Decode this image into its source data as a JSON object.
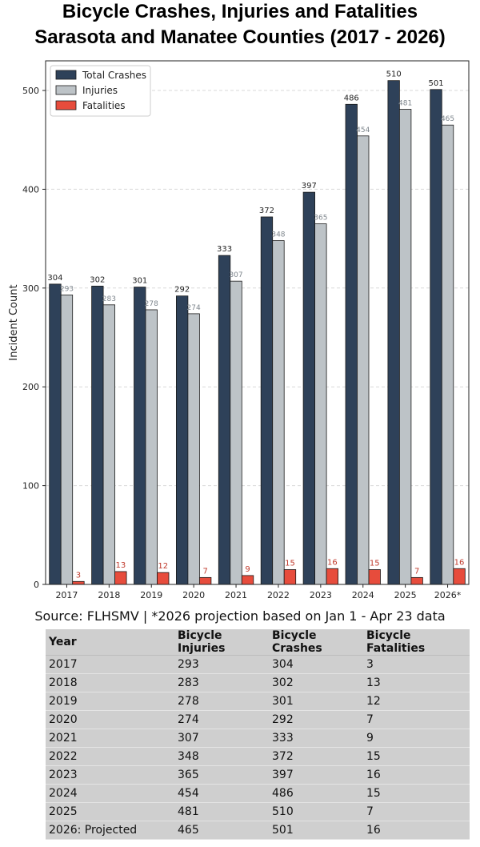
{
  "title_line1": "Bicycle Crashes, Injuries and Fatalities",
  "title_line2": "Sarasota and Manatee Counties (2017 - 2026)",
  "source_note": "Source: FLHSMV | *2026 projection based on Jan 1 - Apr 23 data",
  "colors": {
    "total": "#2e4159",
    "injuries": "#bdc3c7",
    "fatalities": "#e74c3c",
    "fatal_label": "#c0392b"
  },
  "chart_data": {
    "type": "bar",
    "title": "Bicycle Crashes, Injuries and Fatalities Sarasota and Manatee Counties (2017 - 2026)",
    "xlabel": "",
    "ylabel": "Incident Count",
    "ylim": [
      0,
      530
    ],
    "yticks": [
      0,
      100,
      200,
      300,
      400,
      500
    ],
    "grid": true,
    "legend_position": "top-left",
    "categories": [
      "2017",
      "2018",
      "2019",
      "2020",
      "2021",
      "2022",
      "2023",
      "2024",
      "2025",
      "2026*"
    ],
    "series": [
      {
        "name": "Total Crashes",
        "values": [
          304,
          302,
          301,
          292,
          333,
          372,
          397,
          486,
          510,
          501
        ]
      },
      {
        "name": "Injuries",
        "values": [
          293,
          283,
          278,
          274,
          307,
          348,
          365,
          454,
          481,
          465
        ]
      },
      {
        "name": "Fatalities",
        "values": [
          3,
          13,
          12,
          7,
          9,
          15,
          16,
          15,
          7,
          16
        ]
      }
    ]
  },
  "table": {
    "headers": [
      "Year",
      "Bicycle Injuries",
      "Bicycle Crashes",
      "Bicycle Fatalities"
    ],
    "rows": [
      [
        "2017",
        "293",
        "304",
        "3"
      ],
      [
        "2018",
        "283",
        "302",
        "13"
      ],
      [
        "2019",
        "278",
        "301",
        "12"
      ],
      [
        "2020",
        "274",
        "292",
        "7"
      ],
      [
        "2021",
        "307",
        "333",
        "9"
      ],
      [
        "2022",
        "348",
        "372",
        "15"
      ],
      [
        "2023",
        "365",
        "397",
        "16"
      ],
      [
        "2024",
        "454",
        "486",
        "15"
      ],
      [
        "2025",
        "481",
        "510",
        "7"
      ],
      [
        "2026: Projected",
        "465",
        "501",
        "16"
      ]
    ]
  }
}
